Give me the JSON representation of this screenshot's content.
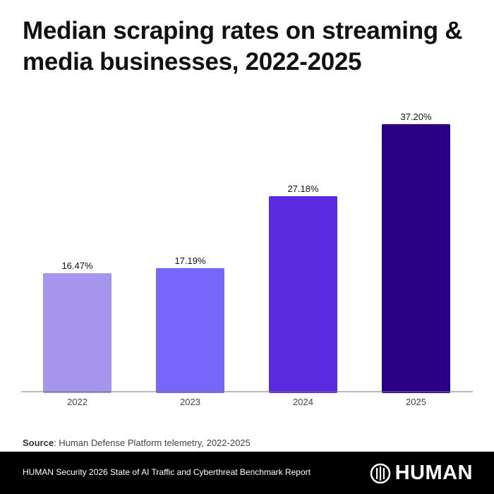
{
  "title": "Median scraping rates on streaming & media businesses, 2022-2025",
  "source": {
    "label": "Source",
    "text": ": Human Defense Platform telemetry, 2022-2025"
  },
  "footer": {
    "text": "HUMAN Security 2026 State of AI Traffic and Cyberthreat Benchmark Report",
    "logo": "HUMAN"
  },
  "chart_data": {
    "type": "bar",
    "title": "Median scraping rates on streaming & media businesses, 2022-2025",
    "categories": [
      "2022",
      "2023",
      "2024",
      "2025"
    ],
    "values": [
      16.47,
      17.19,
      27.18,
      37.2
    ],
    "data_labels": [
      "16.47%",
      "17.19%",
      "27.18%",
      "37.20%"
    ],
    "colors": [
      "#a695ec",
      "#7667fb",
      "#5a2ae0",
      "#2b0086"
    ],
    "xlabel": "",
    "ylabel": "",
    "ylim": [
      0,
      40
    ],
    "grid": false,
    "unit": "%"
  }
}
